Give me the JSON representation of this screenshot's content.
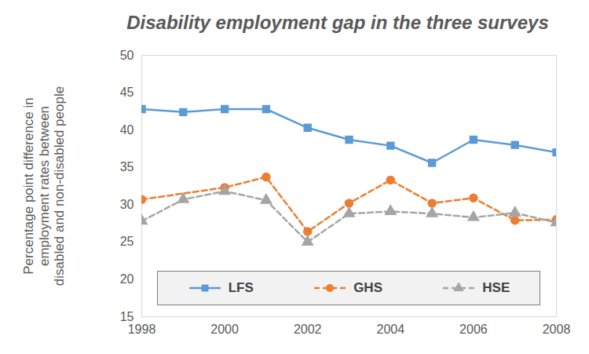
{
  "chart_data": {
    "type": "line",
    "title": "Disability employment gap in the three surveys",
    "y_label": "Percentage point difference in\nemployment rates between\ndisabled and non-disabled people",
    "series": [
      {
        "name": "LFS",
        "color": "#5b9bd5",
        "marker": "square",
        "line_style": "solid",
        "x": [
          1998,
          1999,
          2000,
          2001,
          2002,
          2003,
          2004,
          2005,
          2006,
          2007,
          2008
        ],
        "values": [
          42.8,
          42.4,
          42.8,
          42.8,
          40.3,
          38.7,
          37.9,
          35.6,
          38.7,
          38.0,
          37.0
        ]
      },
      {
        "name": "GHS",
        "color": "#ed7d31",
        "marker": "circle",
        "line_style": "dashed",
        "x": [
          1998,
          2000,
          2001,
          2002,
          2003,
          2004,
          2005,
          2006,
          2007,
          2008
        ],
        "values": [
          30.7,
          32.3,
          33.7,
          26.4,
          30.2,
          33.3,
          30.2,
          30.9,
          27.9,
          28.0
        ]
      },
      {
        "name": "HSE",
        "color": "#a5a5a5",
        "marker": "triangle",
        "line_style": "dashed",
        "x": [
          1998,
          1999,
          2000,
          2001,
          2002,
          2003,
          2004,
          2005,
          2006,
          2007,
          2008
        ],
        "values": [
          27.8,
          30.7,
          31.8,
          30.6,
          25.0,
          28.8,
          29.1,
          28.8,
          28.3,
          28.9,
          27.6
        ]
      }
    ],
    "xlim": [
      1998,
      2008
    ],
    "xticks": [
      1998,
      2000,
      2002,
      2004,
      2006,
      2008
    ],
    "ylim": [
      15,
      50
    ],
    "yticks": [
      15,
      20,
      25,
      30,
      35,
      40,
      45,
      50
    ],
    "grid": false,
    "legend": "bottom"
  }
}
